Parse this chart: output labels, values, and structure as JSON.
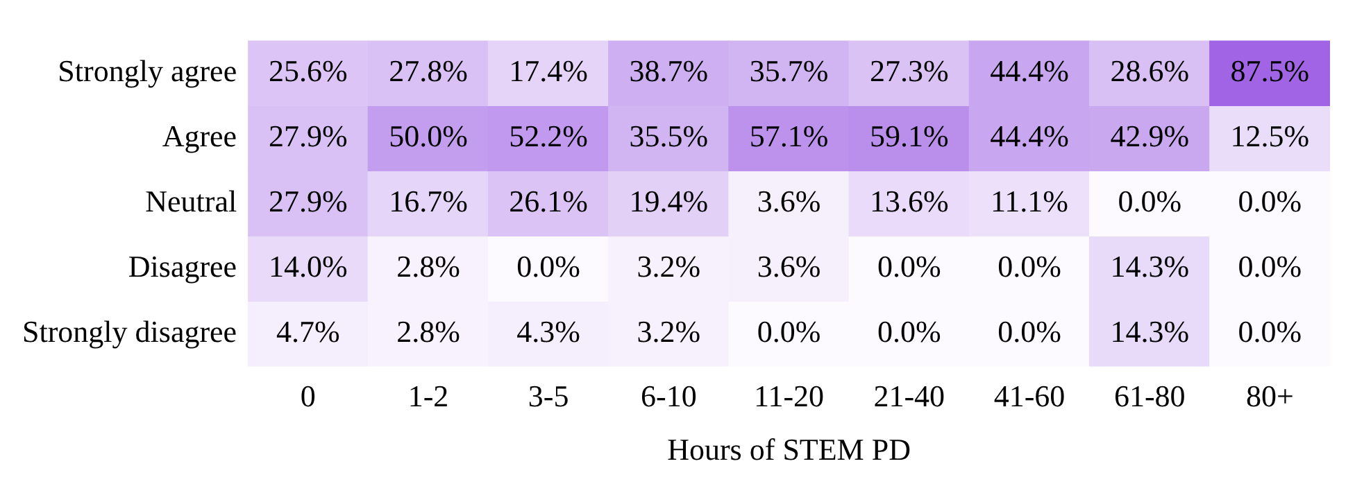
{
  "chart_data": {
    "type": "heatmap",
    "xlabel": "Hours of STEM PD",
    "categories": [
      "0",
      "1-2",
      "3-5",
      "6-10",
      "11-20",
      "21-40",
      "41-60",
      "61-80",
      "80+"
    ],
    "y_categories": [
      "Strongly agree",
      "Agree",
      "Neutral",
      "Disagree",
      "Strongly disagree"
    ],
    "cells": [
      [
        25.6,
        27.8,
        17.4,
        38.7,
        35.7,
        27.3,
        44.4,
        28.6,
        87.5
      ],
      [
        27.9,
        50.0,
        52.2,
        35.5,
        57.1,
        59.1,
        44.4,
        42.9,
        12.5
      ],
      [
        27.9,
        16.7,
        26.1,
        19.4,
        3.6,
        13.6,
        11.1,
        0.0,
        0.0
      ],
      [
        14.0,
        2.8,
        0.0,
        3.2,
        3.6,
        0.0,
        0.0,
        14.3,
        0.0
      ],
      [
        4.7,
        2.8,
        4.3,
        3.2,
        0.0,
        0.0,
        0.0,
        14.3,
        0.0
      ]
    ],
    "cell_labels": [
      [
        "25.6%",
        "27.8%",
        "17.4%",
        "38.7%",
        "35.7%",
        "27.3%",
        "44.4%",
        "28.6%",
        "87.5%"
      ],
      [
        "27.9%",
        "50.0%",
        "52.2%",
        "35.5%",
        "57.1%",
        "59.1%",
        "44.4%",
        "42.9%",
        "12.5%"
      ],
      [
        "27.9%",
        "16.7%",
        "26.1%",
        "19.4%",
        "3.6%",
        "13.6%",
        "11.1%",
        "0.0%",
        "0.0%"
      ],
      [
        "14.0%",
        "2.8%",
        "0.0%",
        "3.2%",
        "3.6%",
        "0.0%",
        "0.0%",
        "14.3%",
        "0.0%"
      ],
      [
        "4.7%",
        "2.8%",
        "4.3%",
        "3.2%",
        "0.0%",
        "0.0%",
        "0.0%",
        "14.3%",
        "0.0%"
      ]
    ]
  }
}
